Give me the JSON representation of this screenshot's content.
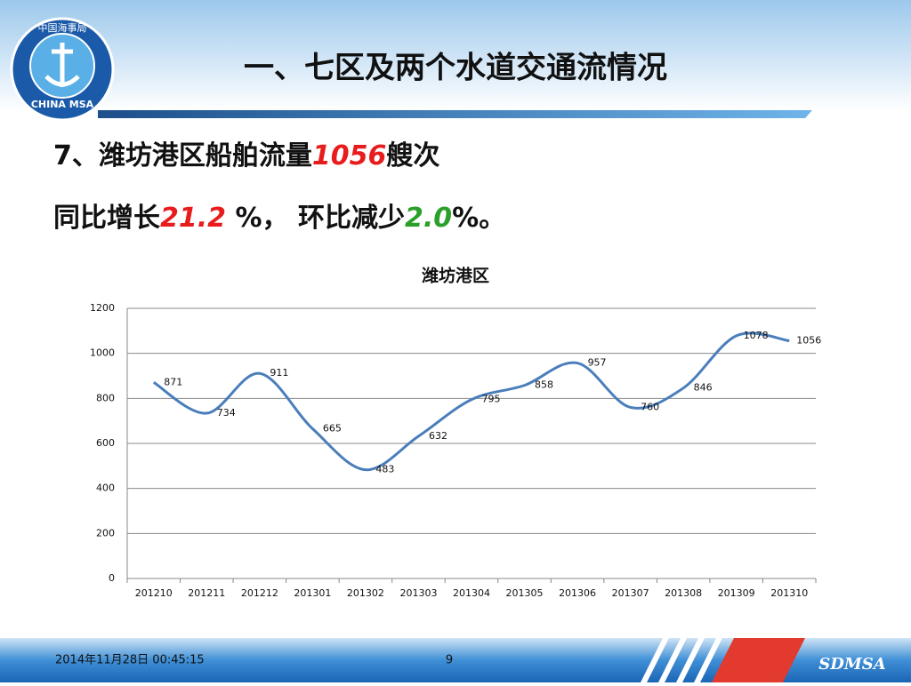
{
  "header": {
    "title": "一、七区及两个水道交通流情况",
    "logo_top": "中国海事局",
    "logo_bottom": "CHINA MSA"
  },
  "summary": {
    "line1": [
      "7、潍坊港区船舶流量",
      "1056",
      "艘次"
    ],
    "line2": [
      "同比增长",
      "21.2",
      " %， 环比减少",
      "2.0",
      "%。"
    ]
  },
  "chart_data": {
    "type": "line",
    "title": "潍坊港区",
    "categories": [
      "201210",
      "201211",
      "201212",
      "201301",
      "201302",
      "201303",
      "201304",
      "201305",
      "201306",
      "201307",
      "201308",
      "201309",
      "201310"
    ],
    "values": [
      871,
      734,
      911,
      665,
      483,
      632,
      795,
      858,
      957,
      760,
      846,
      1078,
      1056
    ],
    "color": "#4a7ebb",
    "ylim": [
      0,
      1200
    ],
    "yticks": [
      0,
      200,
      400,
      600,
      800,
      1000,
      1200
    ],
    "grid": true
  },
  "footer": {
    "date": "2014年11月28日  00:45:15",
    "page": "9",
    "brand": "SDMSA"
  }
}
